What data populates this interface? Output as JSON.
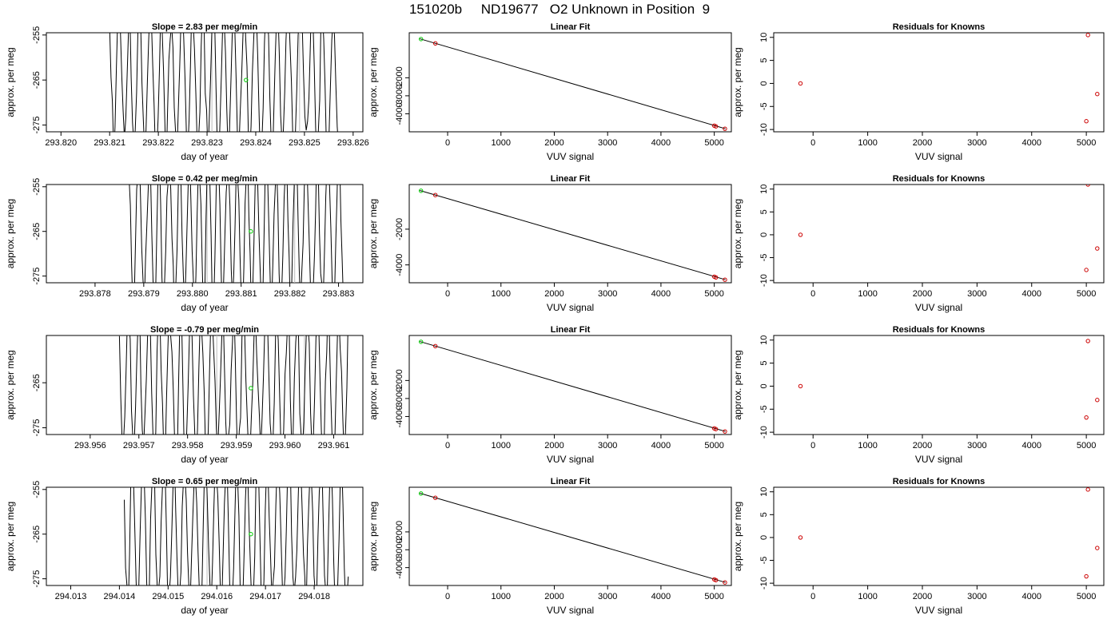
{
  "title": "151020b     ND19677   O2 Unknown in Position  9",
  "colors": {
    "trace": "#000000",
    "unknown": "#00cc00",
    "known": "#cc0000",
    "reference_line": "#bbbbbb"
  },
  "chart_data": [
    {
      "type": "line",
      "row": 1,
      "title": "Slope =  2.83  per meg/min",
      "xlabel": "day of year",
      "ylabel": "approx. per meg",
      "xlim": [
        293.8197,
        293.8262
      ],
      "ylim": [
        -276.5,
        -254.5
      ],
      "xticks": [
        293.82,
        293.821,
        293.822,
        293.823,
        293.824,
        293.825,
        293.826
      ],
      "xtick_labels": [
        "293.820",
        "293.821",
        "293.822",
        "293.823",
        "293.824",
        "293.825",
        "293.826"
      ],
      "yticks": [
        -255,
        -265,
        -275
      ],
      "ytick_labels": [
        "-255",
        "-265",
        "-275"
      ],
      "trace": {
        "x_start": 293.821,
        "x_end": 293.8257,
        "seed": 7
      },
      "reference_lines_x": [
        293.8231,
        293.8249
      ],
      "unknown_point": {
        "x": 293.8238,
        "y": -265.0
      }
    },
    {
      "type": "scatter",
      "row": 1,
      "title": "Linear Fit",
      "xlabel": "VUV signal",
      "ylabel": "approx. per meg",
      "xlim": [
        -720,
        5320
      ],
      "ylim": [
        -5000,
        500
      ],
      "xticks": [
        0,
        1000,
        2000,
        3000,
        4000,
        5000
      ],
      "xtick_labels": [
        "0",
        "1000",
        "2000",
        "3000",
        "4000",
        "5000"
      ],
      "yticks": [
        -2000,
        -3000,
        -4000
      ],
      "ytick_labels": [
        "-2000",
        "-3000",
        "-4000"
      ],
      "fit_line": {
        "x": [
          -520,
          5210
        ],
        "y": [
          165,
          -4830
        ]
      },
      "unknown_point": {
        "x": -500,
        "y": 150
      },
      "known_points": [
        {
          "x": -230,
          "y": -90
        },
        {
          "x": 5000,
          "y": -4660
        },
        {
          "x": 5030,
          "y": -4700
        },
        {
          "x": 5200,
          "y": -4830
        }
      ]
    },
    {
      "type": "scatter",
      "row": 1,
      "title": "Residuals for Knowns",
      "xlabel": "VUV signal",
      "ylabel": "approx. per meg",
      "xlim": [
        -720,
        5320
      ],
      "ylim": [
        -10.5,
        11
      ],
      "xticks": [
        0,
        1000,
        2000,
        3000,
        4000,
        5000
      ],
      "xtick_labels": [
        "0",
        "1000",
        "2000",
        "3000",
        "4000",
        "5000"
      ],
      "yticks": [
        10,
        5,
        0,
        -5,
        -10
      ],
      "ytick_labels": [
        "10",
        "5",
        "0",
        "-5",
        "-10"
      ],
      "known_points": [
        {
          "x": -230,
          "y": 0
        },
        {
          "x": 5030,
          "y": 10.5
        },
        {
          "x": 5200,
          "y": -2.3
        },
        {
          "x": 5000,
          "y": -8.2
        }
      ]
    },
    {
      "type": "line",
      "row": 2,
      "title": "Slope =  0.42  per meg/min",
      "xlabel": "day of year",
      "ylabel": "approx. per meg",
      "xlim": [
        293.877,
        293.8835
      ],
      "ylim": [
        -276.5,
        -254.5
      ],
      "xticks": [
        293.878,
        293.879,
        293.88,
        293.881,
        293.882,
        293.883
      ],
      "xtick_labels": [
        "293.878",
        "293.879",
        "293.880",
        "293.881",
        "293.882",
        "293.883"
      ],
      "yticks": [
        -255,
        -265,
        -275
      ],
      "ytick_labels": [
        "-255",
        "-265",
        "-275"
      ],
      "trace": {
        "x_start": 293.8787,
        "x_end": 293.8831,
        "seed": 13
      },
      "reference_lines_x": [
        293.8803,
        293.8821
      ],
      "unknown_point": {
        "x": 293.8812,
        "y": -265.0
      }
    },
    {
      "type": "scatter",
      "row": 2,
      "title": "Linear Fit",
      "xlabel": "VUV signal",
      "ylabel": "approx. per meg",
      "xlim": [
        -720,
        5320
      ],
      "ylim": [
        -5000,
        500
      ],
      "xticks": [
        0,
        1000,
        2000,
        3000,
        4000,
        5000
      ],
      "xtick_labels": [
        "0",
        "1000",
        "2000",
        "3000",
        "4000",
        "5000"
      ],
      "yticks": [
        -2000,
        -4000
      ],
      "ytick_labels": [
        "-2000",
        "-4000"
      ],
      "fit_line": {
        "x": [
          -520,
          5210
        ],
        "y": [
          165,
          -4830
        ]
      },
      "unknown_point": {
        "x": -500,
        "y": 150
      },
      "known_points": [
        {
          "x": -230,
          "y": -90
        },
        {
          "x": 5000,
          "y": -4660
        },
        {
          "x": 5030,
          "y": -4700
        },
        {
          "x": 5200,
          "y": -4830
        }
      ]
    },
    {
      "type": "scatter",
      "row": 2,
      "title": "Residuals for Knowns",
      "xlabel": "VUV signal",
      "ylabel": "approx. per meg",
      "xlim": [
        -720,
        5320
      ],
      "ylim": [
        -10.5,
        11
      ],
      "xticks": [
        0,
        1000,
        2000,
        3000,
        4000,
        5000
      ],
      "xtick_labels": [
        "0",
        "1000",
        "2000",
        "3000",
        "4000",
        "5000"
      ],
      "yticks": [
        10,
        5,
        0,
        -5,
        -10
      ],
      "ytick_labels": [
        "10",
        "5",
        "0",
        "-5",
        "-10"
      ],
      "known_points": [
        {
          "x": -230,
          "y": 0
        },
        {
          "x": 5030,
          "y": 11
        },
        {
          "x": 5200,
          "y": -3.0
        },
        {
          "x": 5000,
          "y": -7.7
        }
      ]
    },
    {
      "type": "line",
      "row": 3,
      "title": "Slope =  -0.79  per meg/min",
      "xlabel": "day of year",
      "ylabel": "approx. per meg",
      "xlim": [
        293.9551,
        293.9616
      ],
      "ylim": [
        -276.5,
        -254.5
      ],
      "xticks": [
        293.956,
        293.957,
        293.958,
        293.959,
        293.96,
        293.961
      ],
      "xtick_labels": [
        "293.956",
        "293.957",
        "293.958",
        "293.959",
        "293.960",
        "293.961"
      ],
      "yticks": [
        -265,
        -275
      ],
      "ytick_labels": [
        "-265",
        "-275"
      ],
      "trace": {
        "x_start": 293.9566,
        "x_end": 293.9613,
        "seed": 29
      },
      "reference_lines_x": [
        293.9586,
        293.9604
      ],
      "unknown_point": {
        "x": 293.9593,
        "y": -266.2
      }
    },
    {
      "type": "scatter",
      "row": 3,
      "title": "Linear Fit",
      "xlabel": "VUV signal",
      "ylabel": "approx. per meg",
      "xlim": [
        -720,
        5320
      ],
      "ylim": [
        -5000,
        500
      ],
      "xticks": [
        0,
        1000,
        2000,
        3000,
        4000,
        5000
      ],
      "xtick_labels": [
        "0",
        "1000",
        "2000",
        "3000",
        "4000",
        "5000"
      ],
      "yticks": [
        -2000,
        -3000,
        -4000
      ],
      "ytick_labels": [
        "-2000",
        "-3000",
        "-4000"
      ],
      "fit_line": {
        "x": [
          -520,
          5210
        ],
        "y": [
          165,
          -4830
        ]
      },
      "unknown_point": {
        "x": -500,
        "y": 150
      },
      "known_points": [
        {
          "x": -230,
          "y": -90
        },
        {
          "x": 5000,
          "y": -4660
        },
        {
          "x": 5030,
          "y": -4700
        },
        {
          "x": 5200,
          "y": -4830
        }
      ]
    },
    {
      "type": "scatter",
      "row": 3,
      "title": "Residuals for Knowns",
      "xlabel": "VUV signal",
      "ylabel": "approx. per meg",
      "xlim": [
        -720,
        5320
      ],
      "ylim": [
        -10.5,
        11
      ],
      "xticks": [
        0,
        1000,
        2000,
        3000,
        4000,
        5000
      ],
      "xtick_labels": [
        "0",
        "1000",
        "2000",
        "3000",
        "4000",
        "5000"
      ],
      "yticks": [
        10,
        5,
        0,
        -5,
        -10
      ],
      "ytick_labels": [
        "10",
        "5",
        "0",
        "-5",
        "-10"
      ],
      "known_points": [
        {
          "x": -230,
          "y": 0
        },
        {
          "x": 5030,
          "y": 9.8
        },
        {
          "x": 5200,
          "y": -3.0
        },
        {
          "x": 5000,
          "y": -6.8
        }
      ]
    },
    {
      "type": "line",
      "row": 4,
      "title": "Slope =  0.65  per meg/min",
      "xlabel": "day of year",
      "ylabel": "approx. per meg",
      "xlim": [
        294.0125,
        294.019
      ],
      "ylim": [
        -276.5,
        -254.5
      ],
      "xticks": [
        294.013,
        294.014,
        294.015,
        294.016,
        294.017,
        294.018
      ],
      "xtick_labels": [
        "294.013",
        "294.014",
        "294.015",
        "294.016",
        "294.017",
        "294.018"
      ],
      "yticks": [
        -255,
        -265,
        -275
      ],
      "ytick_labels": [
        "-255",
        "-265",
        "-275"
      ],
      "trace": {
        "x_start": 294.0141,
        "x_end": 294.0187,
        "seed": 41
      },
      "reference_lines_x": [
        294.0158
      ],
      "unknown_point": {
        "x": 294.0167,
        "y": -265.0
      }
    },
    {
      "type": "scatter",
      "row": 4,
      "title": "Linear Fit",
      "xlabel": "VUV signal",
      "ylabel": "approx. per meg",
      "xlim": [
        -720,
        5320
      ],
      "ylim": [
        -5000,
        500
      ],
      "xticks": [
        0,
        1000,
        2000,
        3000,
        4000,
        5000
      ],
      "xtick_labels": [
        "0",
        "1000",
        "2000",
        "3000",
        "4000",
        "5000"
      ],
      "yticks": [
        -2000,
        -3000,
        -4000
      ],
      "ytick_labels": [
        "-2000",
        "-3000",
        "-4000"
      ],
      "fit_line": {
        "x": [
          -520,
          5210
        ],
        "y": [
          165,
          -4830
        ]
      },
      "unknown_point": {
        "x": -500,
        "y": 150
      },
      "known_points": [
        {
          "x": -230,
          "y": -90
        },
        {
          "x": 5000,
          "y": -4660
        },
        {
          "x": 5030,
          "y": -4700
        },
        {
          "x": 5200,
          "y": -4830
        }
      ]
    },
    {
      "type": "scatter",
      "row": 4,
      "title": "Residuals for Knowns",
      "xlabel": "VUV signal",
      "ylabel": "approx. per meg",
      "xlim": [
        -720,
        5320
      ],
      "ylim": [
        -10.5,
        11
      ],
      "xticks": [
        0,
        1000,
        2000,
        3000,
        4000,
        5000
      ],
      "xtick_labels": [
        "0",
        "1000",
        "2000",
        "3000",
        "4000",
        "5000"
      ],
      "yticks": [
        10,
        5,
        0,
        -5,
        -10
      ],
      "ytick_labels": [
        "10",
        "5",
        "0",
        "-5",
        "-10"
      ],
      "known_points": [
        {
          "x": -230,
          "y": 0
        },
        {
          "x": 5030,
          "y": 10.5
        },
        {
          "x": 5200,
          "y": -2.3
        },
        {
          "x": 5000,
          "y": -8.5
        }
      ]
    }
  ]
}
